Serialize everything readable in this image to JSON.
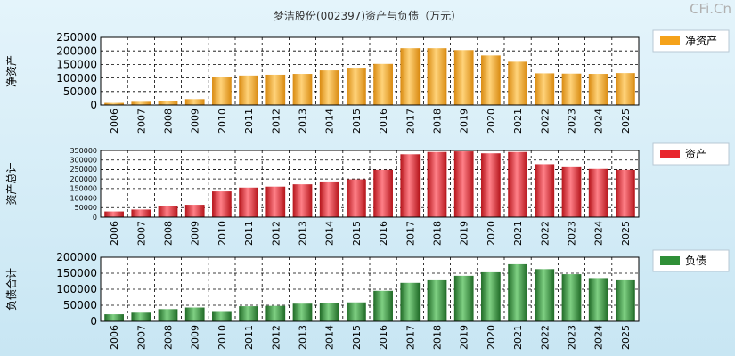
{
  "title": "梦洁股份(002397)资产与负债（万元）",
  "watermark": "CFi.Cn",
  "colors": {
    "equity": "#f5a21a",
    "assets": "#e8262d",
    "liabilities": "#2f8f37"
  },
  "chart_data": [
    {
      "type": "bar",
      "ylabel": "净资产",
      "legend": "净资产",
      "categories": [
        "2006",
        "2007",
        "2008",
        "2009",
        "2010",
        "2011",
        "2012",
        "2013",
        "2014",
        "2015",
        "2016",
        "2017",
        "2018",
        "2019",
        "2020",
        "2021",
        "2022",
        "2023",
        "2024",
        "2025"
      ],
      "values": [
        8000,
        12000,
        16000,
        22000,
        103000,
        109000,
        112000,
        115000,
        128000,
        138000,
        152000,
        210000,
        210000,
        203000,
        183000,
        160000,
        117000,
        116000,
        115000,
        118000
      ],
      "ylim": [
        0,
        250000
      ],
      "yticks": [
        0,
        50000,
        100000,
        150000,
        200000,
        250000
      ],
      "grid": true,
      "legend_position": "right"
    },
    {
      "type": "bar",
      "ylabel": "资产总计",
      "legend": "资产",
      "categories": [
        "2006",
        "2007",
        "2008",
        "2009",
        "2010",
        "2011",
        "2012",
        "2013",
        "2014",
        "2015",
        "2016",
        "2017",
        "2018",
        "2019",
        "2020",
        "2021",
        "2022",
        "2023",
        "2024",
        "2025"
      ],
      "values": [
        30000,
        40000,
        57000,
        65000,
        135000,
        155000,
        160000,
        172000,
        187000,
        198000,
        248000,
        330000,
        342000,
        345000,
        335000,
        342000,
        278000,
        262000,
        253000,
        248000
      ],
      "ylim": [
        0,
        350000
      ],
      "yticks": [
        0,
        50000,
        100000,
        150000,
        200000,
        250000,
        300000,
        350000
      ],
      "grid": true,
      "legend_position": "right"
    },
    {
      "type": "bar",
      "ylabel": "负债合计",
      "legend": "负债",
      "categories": [
        "2006",
        "2007",
        "2008",
        "2009",
        "2010",
        "2011",
        "2012",
        "2013",
        "2014",
        "2015",
        "2016",
        "2017",
        "2018",
        "2019",
        "2020",
        "2021",
        "2022",
        "2023",
        "2024",
        "2025"
      ],
      "values": [
        22000,
        27000,
        38000,
        43000,
        32000,
        47000,
        48000,
        55000,
        58000,
        59000,
        95000,
        120000,
        128000,
        142000,
        153000,
        178000,
        163000,
        147000,
        135000,
        128000
      ],
      "ylim": [
        0,
        200000
      ],
      "yticks": [
        0,
        50000,
        100000,
        150000,
        200000
      ],
      "grid": true,
      "legend_position": "right"
    }
  ]
}
